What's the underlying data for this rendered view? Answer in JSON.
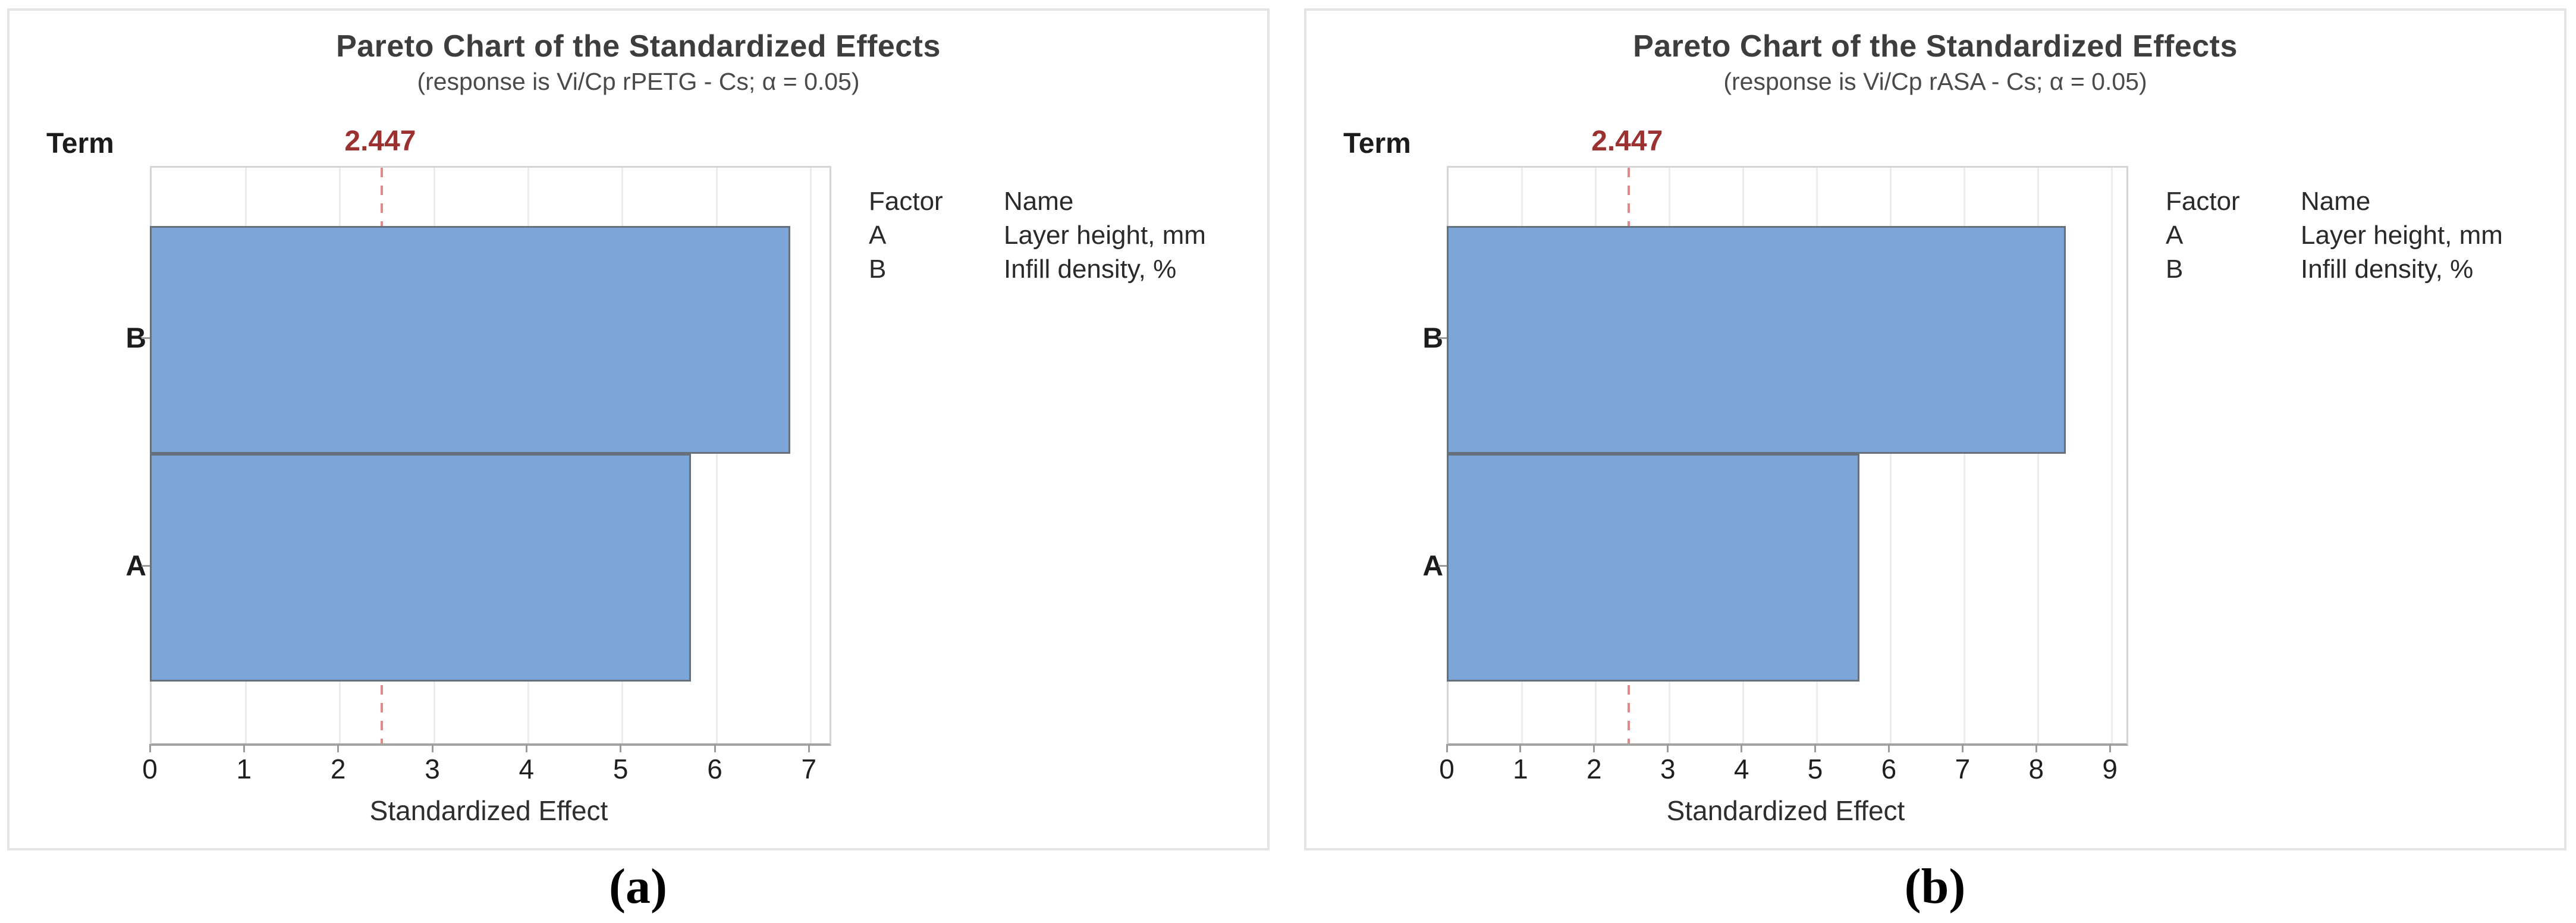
{
  "figure": {
    "caption_a": "(a)",
    "caption_b": "(b)"
  },
  "colors": {
    "bar_fill": "#7CA5D8",
    "bar_border": "#66707a",
    "reference_line": "#e08b8b",
    "reference_label_text": "#9c3131",
    "gridline": "#ececec",
    "plot_frame": "#d5d5d5",
    "axis_line": "#a3a3a3"
  },
  "chart_data": [
    {
      "type": "bar",
      "orientation": "horizontal",
      "title": "Pareto Chart of the Standardized Effects",
      "subtitle": "(response is Vi/Cp rPETG - Cs; α = 0.05)",
      "term_axis_label": "Term",
      "xlabel": "Standardized Effect",
      "categories": [
        "B",
        "A"
      ],
      "values": [
        6.8,
        5.75
      ],
      "x_ticks": [
        0,
        1,
        2,
        3,
        4,
        5,
        6,
        7
      ],
      "xlim": [
        0,
        7.2
      ],
      "grid": true,
      "reference_line": {
        "value": 2.447,
        "label": "2.447"
      },
      "legend_position": "right",
      "legend": {
        "factor_header": "Factor",
        "name_header": "Name",
        "rows": [
          {
            "factor": "A",
            "name": "Layer height, mm"
          },
          {
            "factor": "B",
            "name": "Infill density, %"
          }
        ]
      }
    },
    {
      "type": "bar",
      "orientation": "horizontal",
      "title": "Pareto Chart of the Standardized Effects",
      "subtitle": "(response is Vi/Cp rASA - Cs; α = 0.05)",
      "term_axis_label": "Term",
      "xlabel": "Standardized Effect",
      "categories": [
        "B",
        "A"
      ],
      "values": [
        8.4,
        5.6
      ],
      "x_ticks": [
        0,
        1,
        2,
        3,
        4,
        5,
        6,
        7,
        8,
        9
      ],
      "xlim": [
        0,
        9.2
      ],
      "grid": true,
      "reference_line": {
        "value": 2.447,
        "label": "2.447"
      },
      "legend_position": "right",
      "legend": {
        "factor_header": "Factor",
        "name_header": "Name",
        "rows": [
          {
            "factor": "A",
            "name": "Layer height, mm"
          },
          {
            "factor": "B",
            "name": "Infill density, %"
          }
        ]
      }
    }
  ]
}
